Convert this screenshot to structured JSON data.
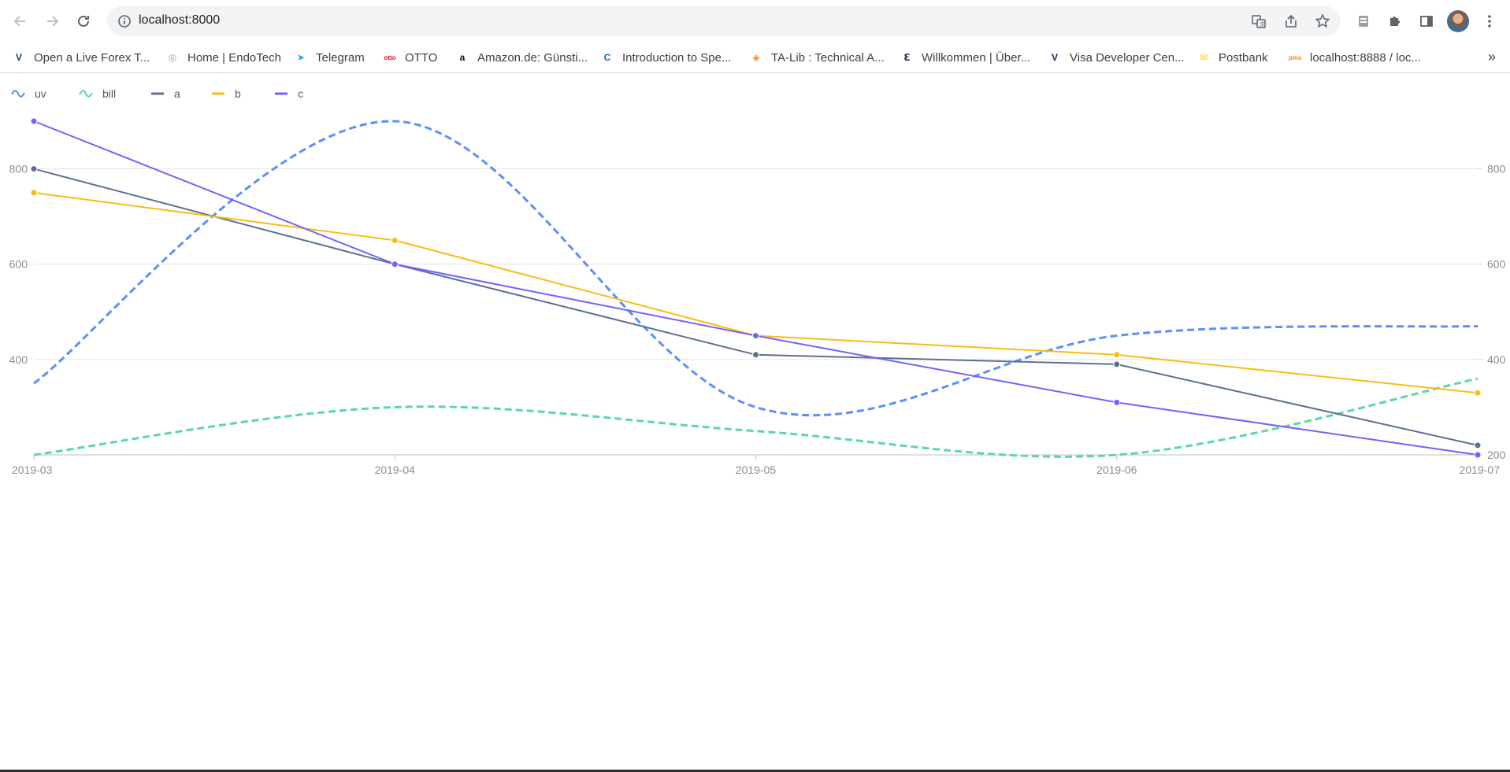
{
  "browser": {
    "url": "localhost:8000",
    "bookmarks": [
      {
        "label": "Open a Live Forex T...",
        "icon": "v-logo-icon",
        "color": "#1b3a5c",
        "glyph": "V"
      },
      {
        "label": "Home | EndoTech",
        "icon": "endotech-icon",
        "color": "#9aa0a6",
        "glyph": "◎"
      },
      {
        "label": "Telegram",
        "icon": "telegram-icon",
        "color": "#2aa1da",
        "glyph": "➤"
      },
      {
        "label": "OTTO",
        "icon": "otto-icon",
        "color": "#e30613",
        "glyph": "otto"
      },
      {
        "label": "Amazon.de: Günsti...",
        "icon": "amazon-icon",
        "color": "#111111",
        "glyph": "a"
      },
      {
        "label": "Introduction to Spe...",
        "icon": "c-logo-icon",
        "color": "#1565c0",
        "glyph": "C"
      },
      {
        "label": "TA-Lib : Technical A...",
        "icon": "talib-icon",
        "color": "#f08a24",
        "glyph": "◈"
      },
      {
        "label": "Willkommen | Über...",
        "icon": "alpha-logo-icon",
        "color": "#1b2a5c",
        "glyph": "ℇ"
      },
      {
        "label": "Visa Developer Cen...",
        "icon": "visa-icon",
        "color": "#1a1f71",
        "glyph": "V"
      },
      {
        "label": "Postbank",
        "icon": "postbank-icon",
        "color": "#ffcc00",
        "glyph": "✉"
      },
      {
        "label": "localhost:8888 / loc...",
        "icon": "phpmyadmin-icon",
        "color": "#f29111",
        "glyph": "pma"
      }
    ]
  },
  "chart_data": {
    "type": "line",
    "categories": [
      "2019-03",
      "2019-04",
      "2019-05",
      "2019-06",
      "2019-07"
    ],
    "legend_position": "top-left",
    "grid": true,
    "y_left": {
      "min": 200,
      "max": 900,
      "ticks": [
        400,
        600,
        800
      ]
    },
    "y_right": {
      "min": 200,
      "max": 900,
      "ticks": [
        200,
        400,
        600,
        800
      ]
    },
    "series": [
      {
        "name": "uv",
        "color": "#5b8ff9",
        "style": "dashed-smooth",
        "axis": "right",
        "values": [
          350,
          900,
          300,
          450,
          470
        ]
      },
      {
        "name": "bill",
        "color": "#5ad8a6",
        "style": "dashed-smooth",
        "axis": "right",
        "values": [
          200,
          300,
          250,
          200,
          360
        ]
      },
      {
        "name": "a",
        "color": "#5d7092",
        "style": "solid-point",
        "axis": "left",
        "values": [
          800,
          600,
          410,
          390,
          220
        ]
      },
      {
        "name": "b",
        "color": "#f6bd16",
        "style": "solid-point",
        "axis": "left",
        "values": [
          750,
          650,
          450,
          410,
          330
        ]
      },
      {
        "name": "c",
        "color": "#7262fd",
        "style": "solid-point",
        "axis": "left",
        "values": [
          900,
          600,
          450,
          310,
          200
        ]
      }
    ]
  }
}
